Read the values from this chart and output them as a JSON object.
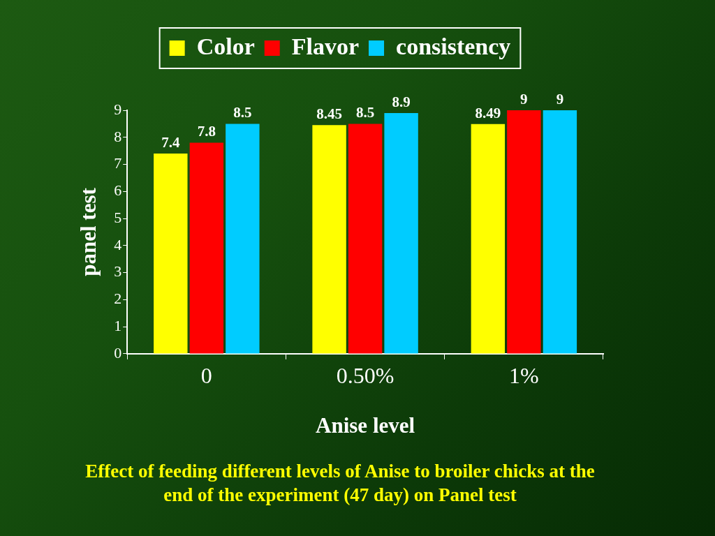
{
  "chart_data": {
    "type": "bar",
    "title": "Effect of feeding different levels of Anise to broiler chicks at the end of the experiment (47 day) on Panel test",
    "xlabel": "Anise level",
    "ylabel": "panel test",
    "categories": [
      "0",
      "0.50%",
      "1%"
    ],
    "series": [
      {
        "name": "Color",
        "color": "#ffff00",
        "values": [
          7.4,
          8.45,
          8.49
        ]
      },
      {
        "name": "Flavor",
        "color": "#ff0000",
        "values": [
          7.8,
          8.5,
          9
        ]
      },
      {
        "name": "consistency",
        "color": "#00ccff",
        "values": [
          8.5,
          8.9,
          9
        ]
      }
    ],
    "ylim": [
      0,
      9
    ],
    "yticks": [
      0,
      1,
      2,
      3,
      4,
      5,
      6,
      7,
      8,
      9
    ],
    "grid": false,
    "legend": "top",
    "data_labels": true
  }
}
